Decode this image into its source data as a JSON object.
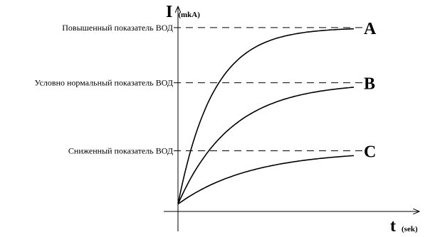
{
  "chart_data": {
    "type": "line",
    "title": "",
    "ylabel": "I",
    "ylabel_unit": "(mkA)",
    "xlabel": "t",
    "xlabel_unit": "(sek)",
    "reference_levels": [
      {
        "label": "Повышенный показатель ВОД",
        "value": 100
      },
      {
        "label": "Условно нормальный показатель ВОД",
        "value": 70
      },
      {
        "label": "Сниженный показатель ВОД",
        "value": 33
      }
    ],
    "series": [
      {
        "name": "A",
        "start": 4,
        "plateau": 100,
        "rate": 5.0
      },
      {
        "name": "B",
        "start": 4,
        "plateau": 70,
        "rate": 3.3
      },
      {
        "name": "C",
        "start": 4,
        "plateau": 33,
        "rate": 2.4
      }
    ],
    "x_range": [
      0,
      1
    ],
    "y_range": [
      0,
      110
    ],
    "grid": false,
    "axis_numbers_shown": false
  }
}
